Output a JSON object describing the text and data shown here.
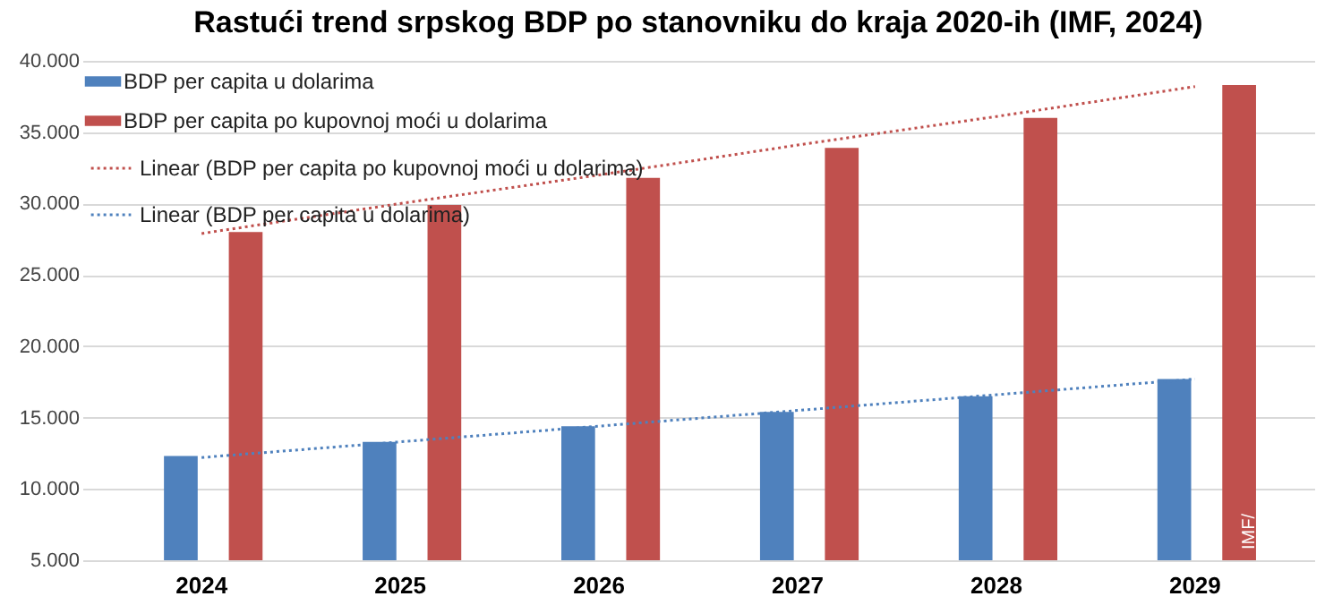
{
  "chart_data": {
    "type": "bar",
    "title": "Rastući trend srpskog BDP po stanovniku do kraja 2020-ih (IMF, 2024)",
    "categories": [
      "2024",
      "2025",
      "2026",
      "2027",
      "2028",
      "2029"
    ],
    "series": [
      {
        "name": "BDP per capita u dolarima",
        "color": "#4f81bd",
        "values": [
          12300,
          13300,
          14400,
          15400,
          16500,
          17700
        ]
      },
      {
        "name": "BDP per capita po kupovnoj moći u dolarima",
        "color": "#c0504d",
        "values": [
          28000,
          29900,
          31800,
          33900,
          36000,
          38300
        ]
      },
      {
        "name": "Linear (BDP per capita po kupovnoj moći u dolarima)",
        "type": "line",
        "line_style": "dotted",
        "color": "#c0504d",
        "values": [
          27900,
          30000,
          32000,
          34100,
          36100,
          38200
        ]
      },
      {
        "name": "Linear (BDP per capita u dolarima)",
        "type": "line",
        "line_style": "dotted",
        "color": "#4f81bd",
        "values": [
          12200,
          13300,
          14400,
          15500,
          16600,
          17700
        ]
      }
    ],
    "ylim": [
      5000,
      40000
    ],
    "yticks": [
      {
        "value": 5000,
        "label": "5.000"
      },
      {
        "value": 10000,
        "label": "10.000"
      },
      {
        "value": 15000,
        "label": "15.000"
      },
      {
        "value": 20000,
        "label": "20.000"
      },
      {
        "value": 25000,
        "label": "25.000"
      },
      {
        "value": 30000,
        "label": "30.000"
      },
      {
        "value": 35000,
        "label": "35.000"
      },
      {
        "value": 40000,
        "label": "40.000"
      }
    ],
    "grid": "y",
    "legend": "top left",
    "annotations": [
      "IMF/"
    ]
  }
}
